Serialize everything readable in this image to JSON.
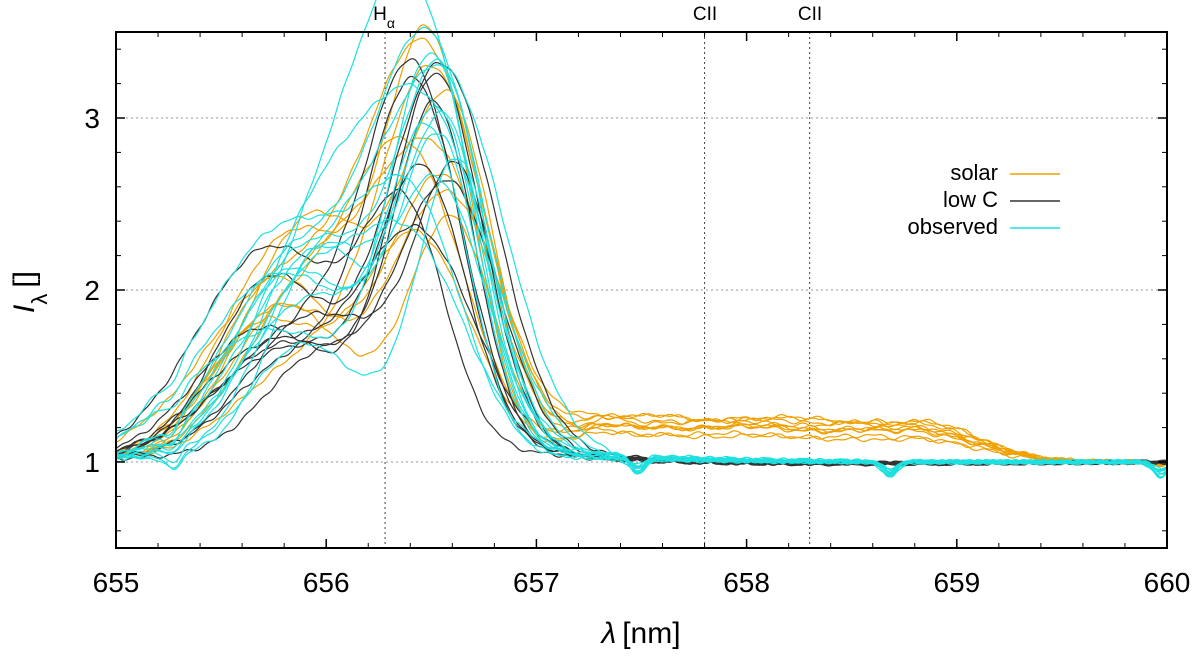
{
  "chart_data": {
    "type": "line",
    "title": "",
    "xlabel_symbol": "λ",
    "xlabel_unit": "[nm]",
    "ylabel_symbol": "I",
    "ylabel_sub": "λ",
    "ylabel_unit": "[]",
    "xlim": [
      655,
      660
    ],
    "ylim": [
      0.5,
      3.5
    ],
    "xticks": [
      "655",
      "656",
      "657",
      "658",
      "659",
      "660"
    ],
    "yticks": [
      "1",
      "2",
      "3"
    ],
    "xtick_values": [
      655,
      656,
      657,
      658,
      659,
      660
    ],
    "ytick_values": [
      1,
      2,
      3
    ],
    "grid": true,
    "legend_position": "top-right",
    "line_markers": [
      {
        "x": 656.28,
        "label_main": "H",
        "label_sub": "α"
      },
      {
        "x": 657.8,
        "label_main": "CII",
        "label_sub": ""
      },
      {
        "x": 658.3,
        "label_main": "CII",
        "label_sub": ""
      }
    ],
    "series": [
      {
        "name": "solar",
        "color": "#f0a000",
        "count": 10
      },
      {
        "name": "low C",
        "color": "#333333",
        "count": 10
      },
      {
        "name": "observed",
        "color": "#1ee0e0",
        "count": 14
      }
    ],
    "profile_model": {
      "continuum": 1.0,
      "main_peak_center": [
        656.35,
        656.65
      ],
      "main_peak_height": [
        1.1,
        2.35
      ],
      "main_peak_width": [
        0.18,
        0.3
      ],
      "blue_shoulder_center": [
        655.7,
        656.0
      ],
      "blue_shoulder_height": [
        0.5,
        1.4
      ],
      "solar_cii_bump_height": [
        0.12,
        0.25
      ],
      "solar_cii_bump_range": [
        657.2,
        659.3
      ]
    }
  }
}
